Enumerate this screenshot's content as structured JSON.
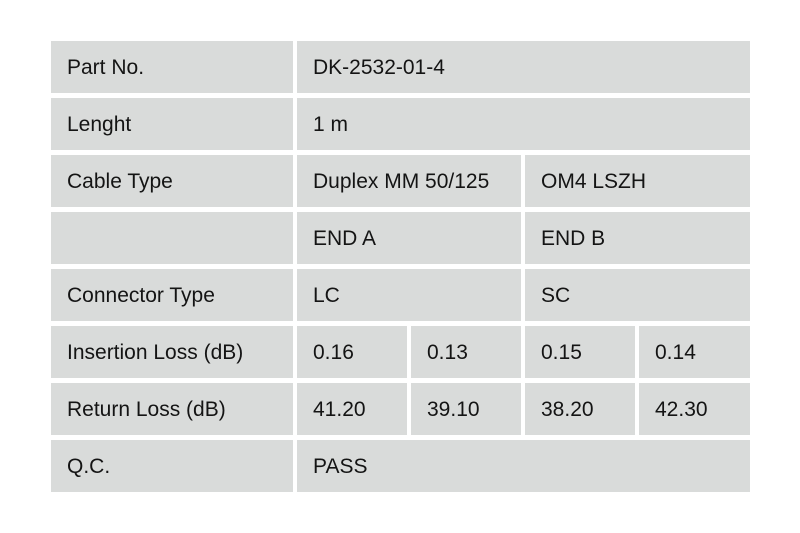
{
  "table": {
    "colors": {
      "cell_background": "#d9dbda",
      "gutter": "#ffffff",
      "text": "#141414"
    },
    "rows": [
      {
        "label": "Part No.",
        "cells": [
          {
            "text": "DK-2532-01-4"
          }
        ]
      },
      {
        "label": "Lenght",
        "cells": [
          {
            "text": "1 m"
          }
        ]
      },
      {
        "label": "Cable Type",
        "cells": [
          {
            "text": "Duplex MM 50/125"
          },
          {
            "text": "OM4 LSZH"
          }
        ]
      },
      {
        "label": "",
        "cells": [
          {
            "text": "END A"
          },
          {
            "text": "END B"
          }
        ]
      },
      {
        "label": "Connector Type",
        "cells": [
          {
            "text": "LC"
          },
          {
            "text": "SC"
          }
        ]
      },
      {
        "label": "Insertion Loss (dB)",
        "cells": [
          {
            "text": "0.16"
          },
          {
            "text": "0.13"
          },
          {
            "text": "0.15"
          },
          {
            "text": "0.14"
          }
        ]
      },
      {
        "label": "Return Loss (dB)",
        "cells": [
          {
            "text": "41.20"
          },
          {
            "text": "39.10"
          },
          {
            "text": "38.20"
          },
          {
            "text": "42.30"
          }
        ]
      },
      {
        "label": "Q.C.",
        "cells": [
          {
            "text": "PASS"
          }
        ]
      }
    ]
  }
}
